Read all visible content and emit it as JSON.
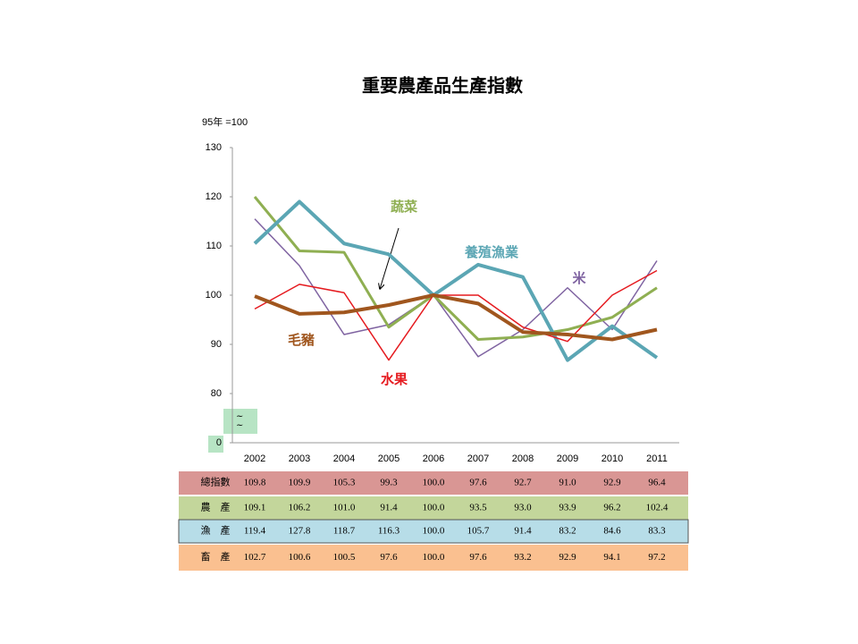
{
  "chart_data": {
    "type": "line",
    "title": "重要農產品生產指數",
    "y_label": "95年 =100",
    "categories": [
      "2002",
      "2003",
      "2004",
      "2005",
      "2006",
      "2007",
      "2008",
      "2009",
      "2010",
      "2011"
    ],
    "ylim": [
      0,
      130
    ],
    "yticks": [
      0,
      80,
      90,
      100,
      110,
      120,
      130
    ],
    "axis_break": [
      0,
      80
    ],
    "grid": false,
    "series": [
      {
        "name": "米",
        "color": "#7f63a1",
        "values": [
          115.5,
          106,
          92,
          94,
          100,
          87.5,
          93,
          101.5,
          93,
          107
        ]
      },
      {
        "name": "蔬菜",
        "color": "#8faf52",
        "values": [
          120,
          109,
          108.7,
          93.5,
          100,
          91,
          91.5,
          93,
          95.5,
          101.5
        ]
      },
      {
        "name": "養殖漁業",
        "color": "#5ba6b4",
        "values": [
          110.5,
          119,
          110.5,
          108.3,
          100,
          106.2,
          103.7,
          86.8,
          93.7,
          87.3
        ]
      },
      {
        "name": "水果",
        "color": "#e51a1f",
        "values": [
          97.2,
          102.2,
          100.5,
          86.8,
          100,
          100,
          93.5,
          90.6,
          100,
          105
        ]
      },
      {
        "name": "毛豬",
        "color": "#a0561e",
        "values": [
          99.8,
          96.2,
          96.5,
          98,
          100,
          98.3,
          92.5,
          92,
          91,
          93
        ]
      }
    ]
  },
  "table": {
    "rows": [
      {
        "label": "總指數",
        "color": "#d99694",
        "values": [
          "109.8",
          "109.9",
          "105.3",
          "99.3",
          "100.0",
          "97.6",
          "92.7",
          "91.0",
          "92.9",
          "96.4"
        ]
      },
      {
        "label": "農　產",
        "color": "#c3d69b",
        "values": [
          "109.1",
          "106.2",
          "101.0",
          "91.4",
          "100.0",
          "93.5",
          "93.0",
          "93.9",
          "96.2",
          "102.4"
        ]
      },
      {
        "label": "漁　產",
        "color": "#b7dde8",
        "values": [
          "119.4",
          "127.8",
          "118.7",
          "116.3",
          "100.0",
          "105.7",
          "91.4",
          "83.2",
          "84.6",
          "83.3"
        ]
      },
      {
        "label": "畜　產",
        "color": "#fac090",
        "values": [
          "102.7",
          "100.6",
          "100.5",
          "97.6",
          "100.0",
          "97.6",
          "93.2",
          "92.9",
          "94.1",
          "97.2"
        ]
      }
    ]
  }
}
